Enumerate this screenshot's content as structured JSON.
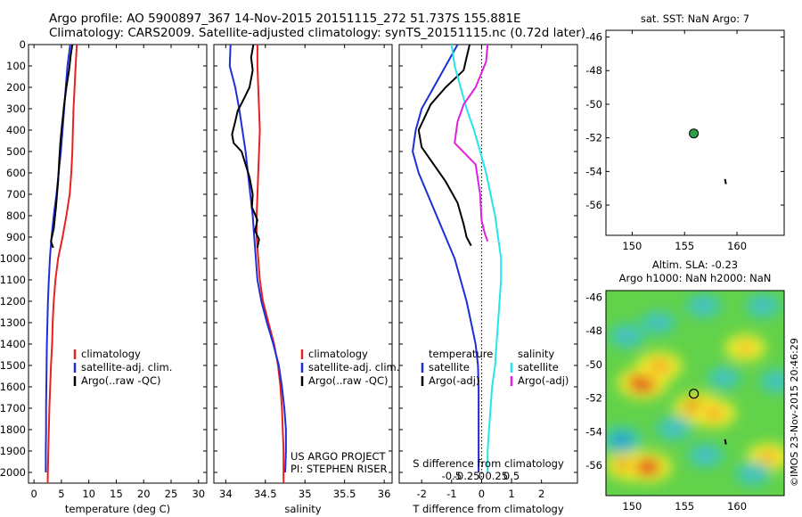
{
  "header": {
    "title_line1": "Argo profile: AO 5900897_367 14-Nov-2015 20151115_272 51.737S 155.881E",
    "title_line2": "Climatology: CARS2009. Satellite-adjusted climatology: synTS_20151115.nc (0.72d later)"
  },
  "credit": "©IMOS 23-Nov-2015 20:46:29",
  "colors": {
    "climatology": "#e8211f",
    "satellite": "#1c2fd6",
    "argo": "#000000",
    "sat_salinity": "#22e5ee",
    "argo_salinity": "#e020e0",
    "float_dot": "#2e9e4a"
  },
  "chart_data": [
    {
      "type": "line",
      "id": "temperature",
      "xlabel": "temperature (deg C)",
      "ylabel": "",
      "xlim": [
        -1,
        31.5
      ],
      "ylim": [
        2050,
        0
      ],
      "xticks": [
        0,
        5,
        10,
        15,
        20,
        25,
        30
      ],
      "xtick_labels": [
        "0",
        "5",
        "10",
        "15",
        "20",
        "25",
        "30"
      ],
      "yticks": [
        0,
        100,
        200,
        300,
        400,
        500,
        600,
        700,
        800,
        900,
        1000,
        1100,
        1200,
        1300,
        1400,
        1500,
        1600,
        1700,
        1800,
        1900,
        2000
      ],
      "ytick_labels": [
        "0",
        "100",
        "200",
        "300",
        "400",
        "500",
        "600",
        "700",
        "800",
        "900",
        "1000",
        "1100",
        "1200",
        "1300",
        "1400",
        "1500",
        "1600",
        "1700",
        "1800",
        "1900",
        "2000"
      ],
      "legend": {
        "placement": "lower-left",
        "entries": [
          "climatology",
          "satellite-adj. clim.",
          "Argo(..raw -QC)"
        ]
      },
      "series": [
        {
          "name": "climatology",
          "color": "#e8211f",
          "x": [
            7.8,
            7.6,
            7.4,
            7.2,
            7.1,
            7.0,
            6.8,
            6.5,
            5.9,
            5.2,
            4.4,
            3.9,
            3.6,
            3.4,
            3.3,
            3.1,
            2.95,
            2.8,
            2.7,
            2.6,
            2.5
          ],
          "y": [
            0,
            100,
            200,
            300,
            400,
            500,
            600,
            700,
            800,
            900,
            1000,
            1100,
            1200,
            1300,
            1400,
            1500,
            1600,
            1700,
            1800,
            1900,
            2050
          ]
        },
        {
          "name": "satellite-adj. clim.",
          "color": "#1c2fd6",
          "x": [
            6.6,
            6.1,
            5.8,
            5.5,
            5.2,
            4.9,
            4.5,
            4.1,
            3.6,
            3.2,
            2.9,
            2.7,
            2.55,
            2.45,
            2.35,
            2.3,
            2.25,
            2.2,
            2.2,
            2.15,
            2.15
          ],
          "y": [
            0,
            100,
            200,
            300,
            400,
            500,
            600,
            700,
            800,
            900,
            1000,
            1100,
            1200,
            1300,
            1400,
            1500,
            1600,
            1700,
            1800,
            1900,
            2000
          ]
        },
        {
          "name": "Argo(..raw -QC)",
          "color": "#000000",
          "x": [
            7.0,
            6.7,
            6.4,
            5.9,
            5.5,
            5.1,
            4.8,
            4.6,
            4.4,
            4.0,
            3.6,
            3.1,
            3.5
          ],
          "y": [
            0,
            50,
            120,
            200,
            280,
            380,
            460,
            540,
            640,
            760,
            860,
            920,
            950
          ]
        }
      ]
    },
    {
      "type": "line",
      "id": "salinity",
      "xlabel": "salinity",
      "ylabel": "",
      "xlim": [
        33.85,
        36.1
      ],
      "ylim": [
        2050,
        0
      ],
      "xticks": [
        34,
        34.5,
        35,
        35.5,
        36
      ],
      "xtick_labels": [
        "34",
        "34.5",
        "35",
        "35.5",
        "36"
      ],
      "legend": {
        "placement": "lower-right",
        "entries": [
          "climatology",
          "satellite-adj. clim.",
          "Argo(..raw -QC)"
        ]
      },
      "annotation": [
        "US ARGO PROJECT",
        "PI: STEPHEN RISER"
      ],
      "series": [
        {
          "name": "climatology",
          "color": "#e8211f",
          "x": [
            34.4,
            34.4,
            34.41,
            34.42,
            34.43,
            34.42,
            34.41,
            34.4,
            34.39,
            34.39,
            34.41,
            34.43,
            34.47,
            34.54,
            34.61,
            34.66,
            34.69,
            34.71,
            34.72,
            34.73,
            34.73
          ],
          "y": [
            0,
            100,
            200,
            300,
            400,
            500,
            600,
            700,
            800,
            900,
            1000,
            1100,
            1200,
            1300,
            1400,
            1500,
            1600,
            1700,
            1800,
            1900,
            2050
          ]
        },
        {
          "name": "satellite-adj. clim.",
          "color": "#1c2fd6",
          "x": [
            34.06,
            34.05,
            34.12,
            34.17,
            34.21,
            34.25,
            34.28,
            34.31,
            34.34,
            34.36,
            34.38,
            34.4,
            34.45,
            34.52,
            34.6,
            34.67,
            34.71,
            34.74,
            34.76,
            34.76,
            34.75
          ],
          "y": [
            0,
            100,
            200,
            300,
            400,
            500,
            600,
            700,
            800,
            900,
            1000,
            1100,
            1200,
            1300,
            1400,
            1500,
            1600,
            1700,
            1800,
            1900,
            2000
          ]
        },
        {
          "name": "Argo(..raw -QC)",
          "color": "#000000",
          "x": [
            34.35,
            34.32,
            34.34,
            34.3,
            34.22,
            34.15,
            34.12,
            34.08,
            34.1,
            34.2,
            34.25,
            34.3,
            34.34,
            34.33,
            34.4,
            34.37,
            34.42,
            34.4
          ],
          "y": [
            0,
            60,
            120,
            200,
            260,
            310,
            360,
            420,
            460,
            500,
            560,
            620,
            700,
            760,
            820,
            870,
            910,
            950
          ]
        }
      ]
    },
    {
      "type": "line",
      "id": "difference",
      "xlabel": "T difference from climatology",
      "xlabel_secondary": "S difference from climatology",
      "xlim": [
        -2.75,
        3.2
      ],
      "ylim": [
        2050,
        0
      ],
      "xticks": [
        -2,
        -1,
        0,
        1,
        2
      ],
      "xtick_labels": [
        "-2",
        "-1",
        "0",
        "1",
        "2"
      ],
      "sticks": [
        -1,
        -0.5,
        0,
        0.5,
        1
      ],
      "stick_labels": [
        "-0.5",
        "-0.25",
        "0",
        "0.25",
        "0.5"
      ],
      "legend": {
        "placement": "lower-center",
        "headers": [
          "temperature",
          "salinity"
        ],
        "entries": [
          "satellite",
          "Argo(-adj)",
          "satellite",
          "Argo(-adj)"
        ]
      },
      "series": [
        {
          "name": "temperature satellite",
          "color": "#1c2fd6",
          "x": [
            -0.8,
            -1.2,
            -1.6,
            -2.0,
            -2.2,
            -2.3,
            -2.1,
            -1.8,
            -1.5,
            -1.2,
            -0.9,
            -0.7,
            -0.5,
            -0.35,
            -0.2,
            -0.12,
            -0.1,
            -0.1,
            -0.1,
            -0.1,
            -0.1
          ],
          "y": [
            0,
            100,
            200,
            300,
            400,
            500,
            600,
            700,
            800,
            900,
            1000,
            1100,
            1200,
            1300,
            1400,
            1500,
            1600,
            1700,
            1800,
            1900,
            2000
          ]
        },
        {
          "name": "temperature Argo(-adj)",
          "color": "#000000",
          "x": [
            -0.4,
            -0.5,
            -0.6,
            -1.2,
            -1.7,
            -2.1,
            -2.0,
            -1.6,
            -1.2,
            -0.8,
            -0.6,
            -0.5,
            -0.35
          ],
          "y": [
            0,
            60,
            120,
            200,
            280,
            400,
            480,
            560,
            640,
            740,
            840,
            900,
            940
          ]
        },
        {
          "name": "salinity satellite",
          "color": "#22e5ee",
          "x": [
            -1.0,
            -0.9,
            -0.7,
            -0.5,
            -0.25,
            -0.05,
            0.15,
            0.3,
            0.45,
            0.55,
            0.65,
            0.65,
            0.6,
            0.55,
            0.5,
            0.45,
            0.35,
            0.3,
            0.25,
            0.2,
            0.2
          ],
          "y": [
            0,
            100,
            200,
            300,
            400,
            500,
            600,
            700,
            800,
            900,
            1000,
            1100,
            1200,
            1300,
            1400,
            1500,
            1600,
            1700,
            1800,
            1900,
            2000
          ]
        },
        {
          "name": "salinity Argo(-adj)",
          "color": "#e020e0",
          "x": [
            0.2,
            0.15,
            -0.2,
            -0.6,
            -0.8,
            -0.9,
            -0.2,
            -0.05,
            0.0,
            0.1,
            0.2
          ],
          "y": [
            0,
            80,
            200,
            280,
            360,
            460,
            560,
            700,
            820,
            880,
            920
          ]
        }
      ]
    },
    {
      "type": "scatter",
      "id": "sst-map",
      "title": "sat. SST: NaN Argo: 7",
      "xlim": [
        147.5,
        164.5
      ],
      "ylim": [
        -57.8,
        -45.6
      ],
      "xticks": [
        150,
        155,
        160
      ],
      "xtick_labels": [
        "150",
        "155",
        "160"
      ],
      "yticks": [
        -46,
        -48,
        -50,
        -52,
        -54,
        -56
      ],
      "ytick_labels": [
        "-46",
        "-48",
        "-50",
        "-52",
        "-54",
        "-56"
      ],
      "points": [
        {
          "lon": 155.881,
          "lat": -51.737,
          "color": "#2e9e4a"
        }
      ],
      "track": [
        {
          "lon": 158.85,
          "lat": -54.45
        },
        {
          "lon": 158.95,
          "lat": -54.75
        }
      ]
    },
    {
      "type": "heatmap",
      "id": "sla-map",
      "title_line1": "Altim. SLA: -0.23",
      "title_line2": "Argo h1000: NaN h2000: NaN",
      "xlim": [
        147.5,
        164.5
      ],
      "ylim": [
        -57.8,
        -45.6
      ],
      "xticks": [
        150,
        155,
        160
      ],
      "xtick_labels": [
        "150",
        "155",
        "160"
      ],
      "yticks": [
        -46,
        -48,
        -50,
        -52,
        -54,
        -56
      ],
      "ytick_labels": [
        "-46",
        "-48",
        "-50",
        "-52",
        "-54",
        "-56"
      ],
      "float_position": {
        "lon": 155.881,
        "lat": -51.737
      },
      "track": [
        {
          "lon": 158.85,
          "lat": -54.45
        },
        {
          "lon": 158.95,
          "lat": -54.75
        }
      ],
      "features": [
        {
          "kind": "high",
          "lon": 151.0,
          "lat": -51.1,
          "strength": 1.0
        },
        {
          "kind": "high",
          "lon": 152.6,
          "lat": -50.1,
          "strength": 0.7
        },
        {
          "kind": "high",
          "lon": 156.3,
          "lat": -52.6,
          "strength": 0.9
        },
        {
          "kind": "high",
          "lon": 157.8,
          "lat": -52.9,
          "strength": 0.6
        },
        {
          "kind": "high",
          "lon": 149.8,
          "lat": -56.0,
          "strength": 0.85
        },
        {
          "kind": "high",
          "lon": 151.5,
          "lat": -56.1,
          "strength": 0.85
        },
        {
          "kind": "high",
          "lon": 163.0,
          "lat": -55.5,
          "strength": 0.5
        },
        {
          "kind": "high",
          "lon": 160.8,
          "lat": -49.0,
          "strength": 0.35
        },
        {
          "kind": "low",
          "lon": 149.0,
          "lat": -54.5,
          "strength": 0.9
        },
        {
          "kind": "low",
          "lon": 149.5,
          "lat": -48.3,
          "strength": 0.6
        },
        {
          "kind": "low",
          "lon": 152.5,
          "lat": -47.5,
          "strength": 0.5
        },
        {
          "kind": "low",
          "lon": 156.8,
          "lat": -46.5,
          "strength": 0.55
        },
        {
          "kind": "low",
          "lon": 162.5,
          "lat": -46.5,
          "strength": 0.55
        },
        {
          "kind": "low",
          "lon": 154.0,
          "lat": -53.8,
          "strength": 0.6
        },
        {
          "kind": "low",
          "lon": 157.0,
          "lat": -55.4,
          "strength": 0.6
        },
        {
          "kind": "low",
          "lon": 161.5,
          "lat": -56.5,
          "strength": 0.55
        },
        {
          "kind": "low",
          "lon": 163.8,
          "lat": -51.0,
          "strength": 0.5
        },
        {
          "kind": "low",
          "lon": 158.8,
          "lat": -50.8,
          "strength": 0.4
        }
      ]
    }
  ]
}
